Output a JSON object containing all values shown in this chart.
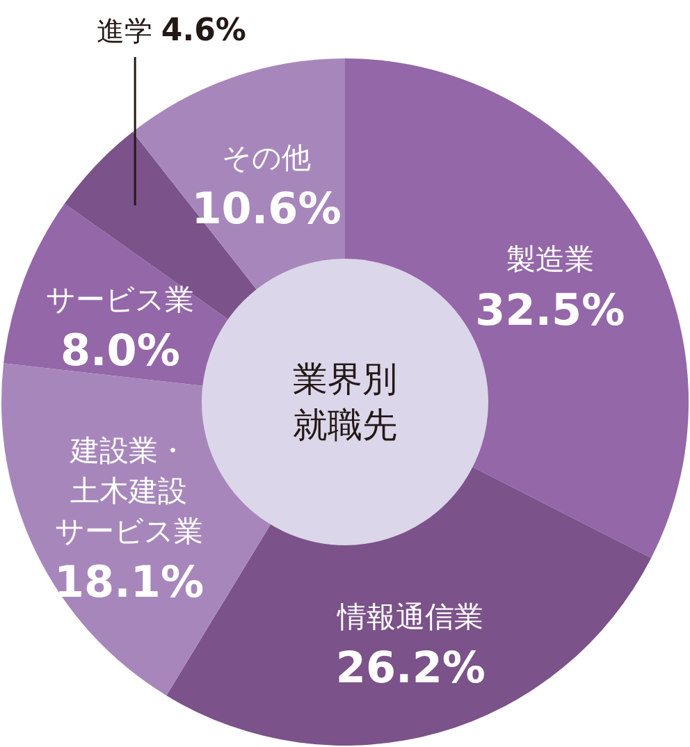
{
  "chart_data": {
    "type": "donut",
    "title": "業界別就職先",
    "categories": [
      "製造業",
      "情報通信業",
      "建設業・土木建設サービス業",
      "サービス業",
      "進学",
      "その他"
    ],
    "values": [
      32.5,
      26.2,
      18.1,
      8.0,
      4.6,
      10.6
    ],
    "value_labels": [
      "32.5%",
      "26.2%",
      "18.1%",
      "8.0%",
      "4.6%",
      "10.6%"
    ],
    "colors": [
      "#9467a8",
      "#7b5289",
      "#a787bb",
      "#9467a8",
      "#7b5289",
      "#a787bb"
    ]
  }
}
